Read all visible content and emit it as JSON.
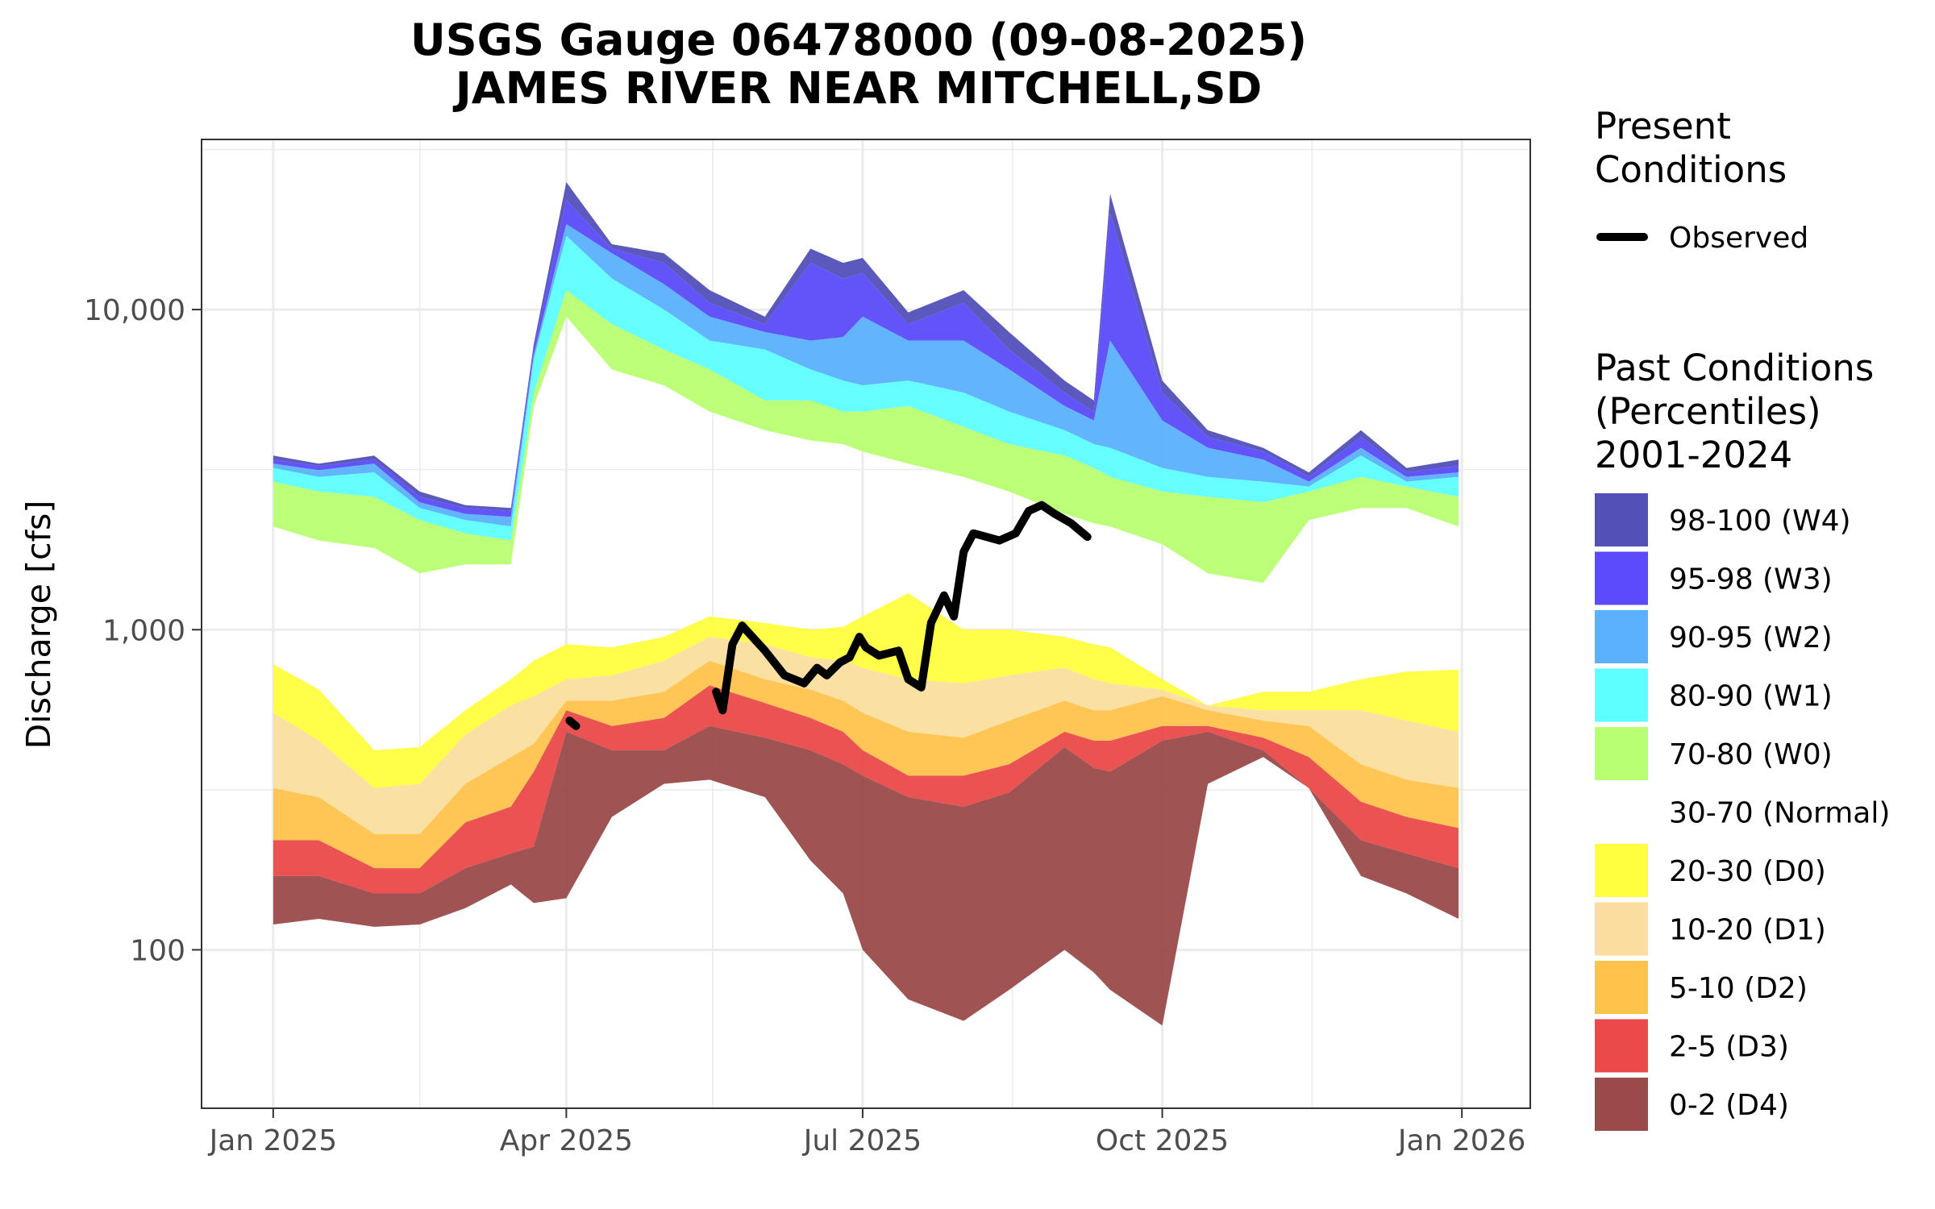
{
  "chart_data": {
    "type": "area",
    "title": [
      "USGS Gauge 06478000 (09-08-2025)",
      "JAMES RIVER NEAR MITCHELL,SD"
    ],
    "xlabel": "",
    "ylabel": "Discharge [cfs]",
    "y_scale": "log",
    "ylim": [
      32,
      34000
    ],
    "x_ticks": [
      "Jan 2025",
      "Apr 2025",
      "Jul 2025",
      "Oct 2025",
      "Jan 2026"
    ],
    "y_ticks": [
      {
        "value": 100,
        "label": "100"
      },
      {
        "value": 1000,
        "label": "1,000"
      },
      {
        "value": 10000,
        "label": "10,000"
      }
    ],
    "grid": true,
    "legend_placement": "right",
    "colors": {
      "W4": "#5350b8",
      "W3": "#5b4bfa",
      "W2": "#5ab1fd",
      "W1": "#5effff",
      "W0": "#b8ff71",
      "D0": "#ffff3f",
      "D1": "#fbde9f",
      "D2": "#ffc34c",
      "D3": "#ea4a4a",
      "D4": "#9b4a4a",
      "observed": "#000000",
      "gridline": "#ebebeb",
      "panel_border": "#333333"
    },
    "legend": {
      "present_title": [
        "Present",
        "Conditions"
      ],
      "observed_label": "Observed",
      "past_title": [
        "Past Conditions",
        "(Percentiles)",
        "2001-2024"
      ],
      "items": [
        {
          "key": "W4",
          "label": "98-100 (W4)"
        },
        {
          "key": "W3",
          "label": "95-98 (W3)"
        },
        {
          "key": "W2",
          "label": "90-95 (W2)"
        },
        {
          "key": "W1",
          "label": "80-90 (W1)"
        },
        {
          "key": "W0",
          "label": "70-80 (W0)"
        },
        {
          "key": "N",
          "label": "30-70 (Normal)"
        },
        {
          "key": "D0",
          "label": "20-30 (D0)"
        },
        {
          "key": "D1",
          "label": "10-20 (D1)"
        },
        {
          "key": "D2",
          "label": "5-10 (D2)"
        },
        {
          "key": "D3",
          "label": "2-5 (D3)"
        },
        {
          "key": "D4",
          "label": "0-2 (D4)"
        }
      ]
    },
    "percentile_boundaries": {
      "dates": [
        "2025-01-01",
        "2025-01-15",
        "2025-02-01",
        "2025-02-15",
        "2025-03-01",
        "2025-03-15",
        "2025-03-22",
        "2025-04-01",
        "2025-04-15",
        "2025-05-01",
        "2025-05-15",
        "2025-06-01",
        "2025-06-15",
        "2025-06-25",
        "2025-07-01",
        "2025-07-15",
        "2025-08-01",
        "2025-08-15",
        "2025-09-01",
        "2025-09-10",
        "2025-09-15",
        "2025-10-01",
        "2025-10-15",
        "2025-11-01",
        "2025-11-15",
        "2025-12-01",
        "2025-12-15",
        "2025-12-31"
      ],
      "p0": [
        120,
        125,
        118,
        120,
        135,
        160,
        140,
        145,
        260,
        330,
        340,
        300,
        190,
        150,
        100,
        70,
        60,
        75,
        100,
        85,
        75,
        58,
        330,
        400,
        320,
        170,
        150,
        125
      ],
      "p2": [
        170,
        170,
        150,
        150,
        180,
        200,
        210,
        480,
        420,
        420,
        500,
        460,
        420,
        380,
        350,
        300,
        280,
        310,
        430,
        370,
        360,
        450,
        480,
        420,
        320,
        220,
        200,
        180
      ],
      "p5": [
        220,
        220,
        180,
        180,
        250,
        280,
        360,
        560,
        500,
        530,
        670,
        590,
        530,
        480,
        420,
        350,
        350,
        380,
        480,
        450,
        450,
        500,
        500,
        460,
        400,
        290,
        260,
        240
      ],
      "p10": [
        320,
        300,
        230,
        230,
        330,
        400,
        440,
        600,
        600,
        640,
        800,
        700,
        650,
        600,
        550,
        480,
        460,
        520,
        600,
        560,
        560,
        620,
        560,
        520,
        500,
        380,
        340,
        320
      ],
      "p20": [
        550,
        450,
        320,
        330,
        470,
        580,
        620,
        700,
        720,
        800,
        950,
        900,
        820,
        800,
        760,
        700,
        680,
        720,
        760,
        700,
        680,
        650,
        580,
        560,
        560,
        560,
        520,
        480
      ],
      "p30": [
        780,
        650,
        420,
        430,
        560,
        700,
        800,
        900,
        880,
        950,
        1100,
        1050,
        1000,
        1020,
        1100,
        1300,
        1000,
        1000,
        950,
        900,
        880,
        700,
        580,
        640,
        640,
        700,
        740,
        750
      ],
      "p70": [
        2100,
        1900,
        1800,
        1500,
        1600,
        1600,
        5000,
        9500,
        6500,
        5800,
        4800,
        4200,
        3900,
        3800,
        3600,
        3300,
        3000,
        2700,
        2300,
        2150,
        2100,
        1850,
        1500,
        1400,
        2200,
        2400,
        2400,
        2100
      ],
      "p80": [
        2900,
        2700,
        2600,
        2200,
        2000,
        1900,
        5500,
        11500,
        9000,
        7500,
        6500,
        5200,
        5200,
        4800,
        4800,
        5000,
        4300,
        3800,
        3500,
        3200,
        3000,
        2700,
        2600,
        2500,
        2700,
        3000,
        2800,
        2600
      ],
      "p90": [
        3200,
        3000,
        3100,
        2400,
        2200,
        2100,
        7000,
        17000,
        12500,
        10000,
        8000,
        7500,
        6500,
        6000,
        5800,
        6000,
        5500,
        4800,
        4200,
        3800,
        3700,
        3200,
        3000,
        2900,
        2800,
        3500,
        2900,
        3000
      ],
      "p95": [
        3300,
        3150,
        3300,
        2500,
        2300,
        2250,
        7200,
        18500,
        15000,
        12000,
        9500,
        8500,
        8000,
        8200,
        9500,
        8000,
        8000,
        6500,
        5000,
        4500,
        8000,
        4500,
        3700,
        3400,
        2900,
        3700,
        3000,
        3100
      ],
      "p98": [
        3400,
        3250,
        3400,
        2600,
        2400,
        2350,
        7500,
        22000,
        15500,
        14000,
        10500,
        9000,
        14000,
        12500,
        13000,
        9000,
        10500,
        7500,
        5500,
        4800,
        20000,
        5500,
        4000,
        3600,
        3000,
        4000,
        3100,
        3250
      ],
      "p100": [
        3500,
        3300,
        3500,
        2700,
        2450,
        2400,
        7800,
        25000,
        16000,
        15000,
        11500,
        9500,
        15500,
        14000,
        14500,
        9800,
        11500,
        8500,
        6000,
        5200,
        23000,
        6000,
        4200,
        3700,
        3100,
        4200,
        3200,
        3400
      ]
    },
    "observed": {
      "dates": [
        "2025-04-02",
        "2025-04-04",
        "2025-05-17",
        "2025-05-19",
        "2025-05-22",
        "2025-05-25",
        "2025-06-01",
        "2025-06-07",
        "2025-06-13",
        "2025-06-17",
        "2025-06-20",
        "2025-06-24",
        "2025-06-27",
        "2025-06-30",
        "2025-07-02",
        "2025-07-06",
        "2025-07-12",
        "2025-07-15",
        "2025-07-19",
        "2025-07-22",
        "2025-07-26",
        "2025-07-29",
        "2025-08-01",
        "2025-08-04",
        "2025-08-08",
        "2025-08-12",
        "2025-08-17",
        "2025-08-21",
        "2025-08-25",
        "2025-08-29",
        "2025-09-03",
        "2025-09-08"
      ],
      "values": [
        520,
        500,
        640,
        560,
        900,
        1030,
        860,
        720,
        680,
        760,
        720,
        790,
        820,
        950,
        880,
        830,
        860,
        700,
        660,
        1050,
        1280,
        1100,
        1750,
        2000,
        1950,
        1900,
        2000,
        2350,
        2450,
        2300,
        2150,
        1950
      ]
    }
  }
}
